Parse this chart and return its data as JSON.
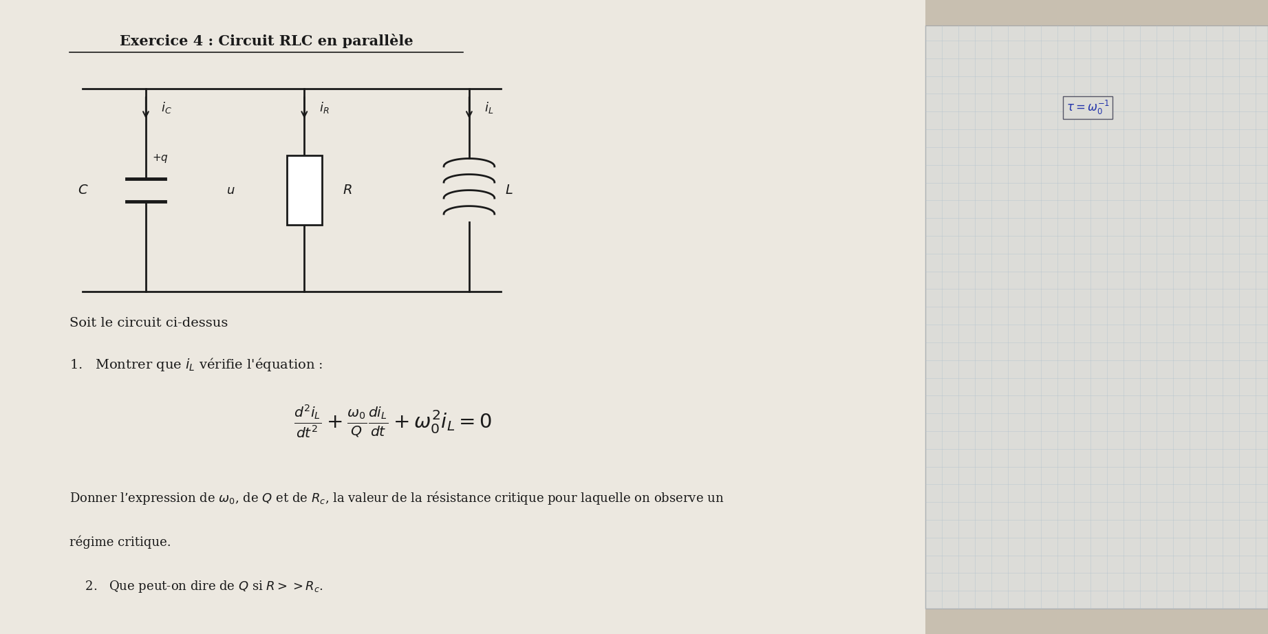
{
  "title": "Exercice 4 : Circuit RLC en parallèle",
  "bg_color": "#c8bfb0",
  "paper_color": "#ece8e0",
  "right_paper_color": "#e0e0dc",
  "text_color": "#1a1a1a",
  "line1": "Soit le circuit ci-dessus",
  "line2": "1.   Montrer que $i_L$ vérifie l'équation :",
  "equation": "$\\frac{d^2i_L}{dt^2}+\\frac{\\omega_0}{Q}\\frac{di_L}{dt}+\\omega_0^2 i_L=0$",
  "line3": "Donner l’expression de $\\omega_0$, de $Q$ et de $R_c$, la valeur de la résistance critique pour laquelle on observe un",
  "line4": "régime critique.",
  "line5": "    2.   Que peut-on dire de $Q$ si $R{>}{>}R_c$.",
  "note_text": "$\\tau = \\omega_0^{-1}$"
}
